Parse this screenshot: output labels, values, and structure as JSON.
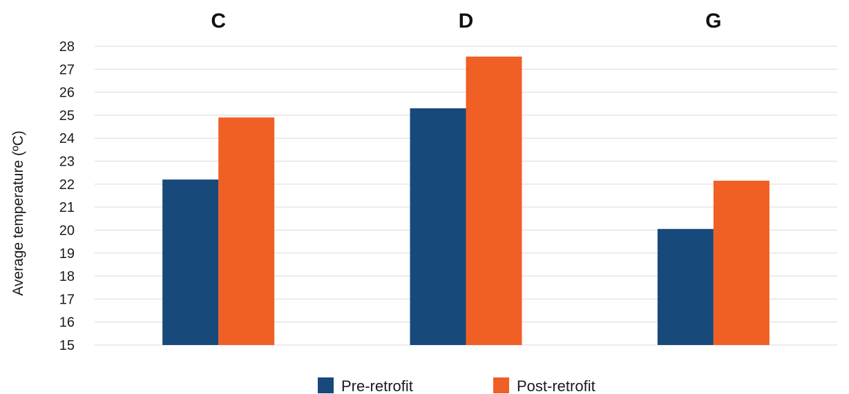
{
  "chart_data": {
    "type": "bar",
    "categories": [
      "C",
      "D",
      "G"
    ],
    "series": [
      {
        "name": "Pre-retrofit",
        "values": [
          22.2,
          25.3,
          20.05
        ],
        "color": "#17497b"
      },
      {
        "name": "Post-retrofit",
        "values": [
          24.9,
          27.55,
          22.15
        ],
        "color": "#f05f24"
      }
    ],
    "ylabel": "Average temperature (ºC)",
    "xlabel": "",
    "ylim": [
      15,
      28
    ],
    "yticks": [
      15,
      16,
      17,
      18,
      19,
      20,
      21,
      22,
      23,
      24,
      25,
      26,
      27,
      28
    ],
    "grid": true,
    "category_labels_position": "top",
    "legend_position": "bottom"
  }
}
